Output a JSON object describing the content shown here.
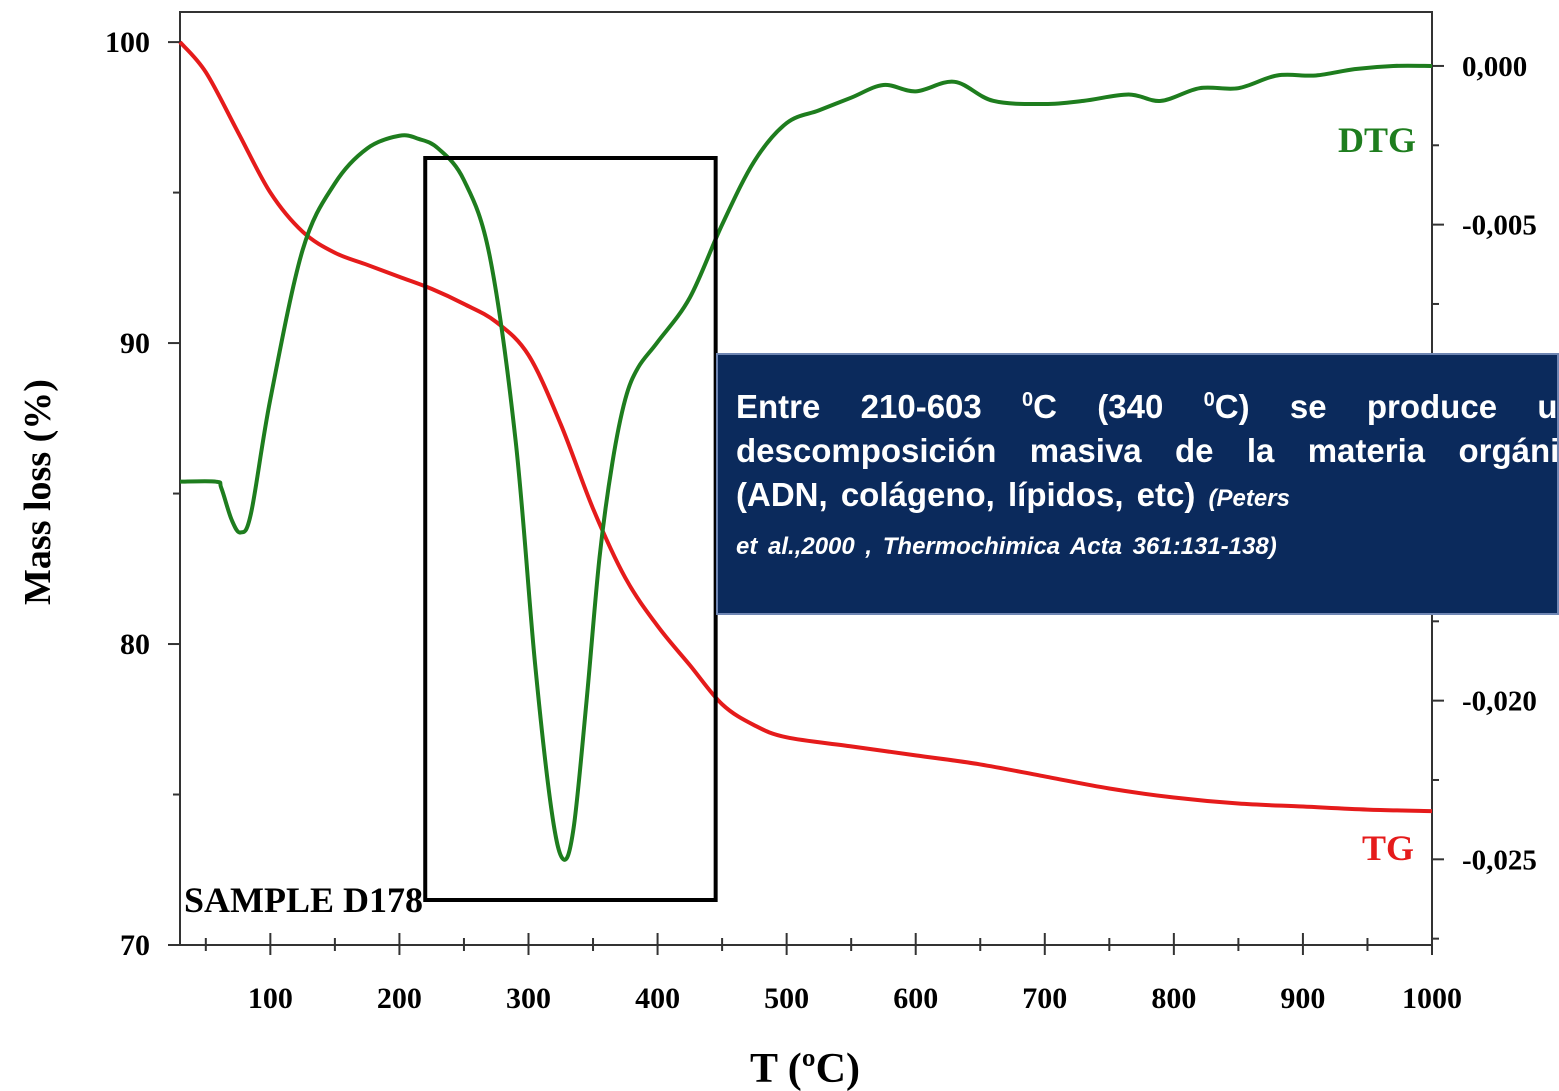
{
  "chart_data": {
    "type": "line",
    "xlabel": "T (ºC)",
    "ylabel": "Mass loss (%)",
    "y2label": "",
    "xlim": [
      30,
      1000
    ],
    "ylim": [
      70,
      101
    ],
    "y2lim": [
      -0.0277,
      0.0017
    ],
    "x_ticks": [
      100,
      200,
      300,
      400,
      500,
      600,
      700,
      800,
      900,
      1000
    ],
    "x_tick_labels": [
      "100",
      "200",
      "300",
      "400",
      "500",
      "600",
      "700",
      "800",
      "900",
      "1000"
    ],
    "y_ticks": [
      70,
      80,
      90,
      100
    ],
    "y_tick_labels": [
      "70",
      "80",
      "90",
      "100"
    ],
    "y2_ticks": [
      0.0,
      -0.005,
      -0.02,
      -0.025
    ],
    "y2_tick_labels": [
      "0,000",
      "-0,005",
      "-0,020",
      "-0,025"
    ],
    "series": [
      {
        "name": "TG",
        "axis": "left",
        "color": "#e51b1b",
        "x": [
          30,
          50,
          75,
          100,
          125,
          150,
          175,
          200,
          225,
          250,
          275,
          300,
          325,
          350,
          375,
          400,
          425,
          450,
          475,
          500,
          550,
          600,
          650,
          700,
          750,
          800,
          850,
          900,
          950,
          1000
        ],
        "y": [
          100,
          99.0,
          97.0,
          95.0,
          93.7,
          93.0,
          92.6,
          92.2,
          91.8,
          91.3,
          90.7,
          89.6,
          87.3,
          84.5,
          82.2,
          80.6,
          79.3,
          78.0,
          77.3,
          76.9,
          76.6,
          76.3,
          76.0,
          75.6,
          75.2,
          74.9,
          74.7,
          74.6,
          74.5,
          74.45
        ]
      },
      {
        "name": "DTG",
        "axis": "right",
        "color": "#1e7d1e",
        "x": [
          30,
          58,
          62,
          70,
          77,
          85,
          100,
          125,
          150,
          175,
          200,
          215,
          230,
          250,
          270,
          290,
          305,
          318,
          327,
          335,
          345,
          355,
          365,
          375,
          385,
          400,
          425,
          450,
          475,
          500,
          525,
          550,
          575,
          600,
          630,
          660,
          700,
          730,
          765,
          790,
          820,
          850,
          880,
          910,
          940,
          970,
          1000
        ],
        "y": [
          -0.0131,
          -0.0131,
          -0.0133,
          -0.0143,
          -0.0147,
          -0.0141,
          -0.0105,
          -0.0058,
          -0.0037,
          -0.0026,
          -0.0022,
          -0.0023,
          -0.0026,
          -0.0036,
          -0.006,
          -0.0118,
          -0.0188,
          -0.0235,
          -0.025,
          -0.024,
          -0.02,
          -0.0155,
          -0.0125,
          -0.0105,
          -0.0095,
          -0.0087,
          -0.0073,
          -0.005,
          -0.003,
          -0.0018,
          -0.0014,
          -0.001,
          -0.0006,
          -0.0008,
          -0.0005,
          -0.0011,
          -0.0012,
          -0.0011,
          -0.0009,
          -0.0011,
          -0.0007,
          -0.0007,
          -0.0003,
          -0.0003,
          -0.0001,
          0.0,
          0.0
        ]
      }
    ],
    "annotations": {
      "sample": "SAMPLE D178",
      "highlight_box_x_range": [
        220,
        445
      ]
    }
  },
  "callout": {
    "line1": "Entre 210-603 ",
    "deg": "0",
    "line1b": "C (340 ",
    "line1c": "C) se produce una",
    "line2": "descomposición masiva de la materia",
    "line3": "orgánica (ADN, colágeno, lípidos, etc) ",
    "cite1": "(Peters",
    "cite2": "et al.,2000 , Thermochimica Acta 361:131-138)"
  }
}
